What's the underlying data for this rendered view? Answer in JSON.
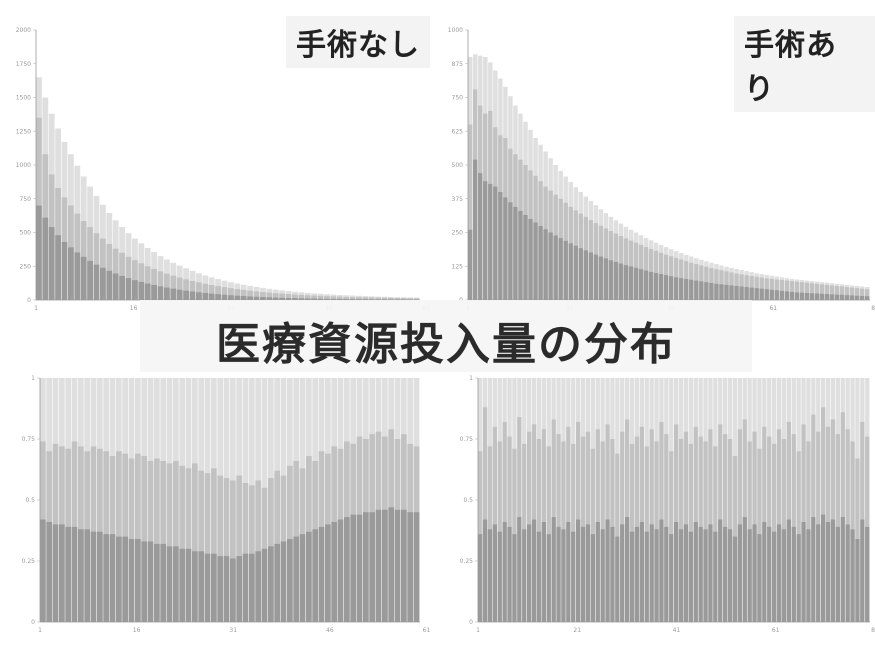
{
  "labels": {
    "without_surgery": "手術なし",
    "with_surgery": "手術あり",
    "banner": "医療資源投入量の分布"
  },
  "colors": {
    "bar_light": "#d9d9d9",
    "bar_mid": "#bdbdbd",
    "bar_dark": "#7a7a7a"
  },
  "chart_data": [
    {
      "type": "bar",
      "panel": "top-left",
      "x_range": [
        1,
        60
      ],
      "ylim": [
        0,
        2000
      ],
      "yticks": [
        0,
        250,
        500,
        750,
        1000,
        1250,
        1500,
        1750,
        2000
      ],
      "series": [
        {
          "values": [
            1650,
            1500,
            1380,
            1270,
            1170,
            1080,
            995,
            915,
            840,
            770,
            705,
            645,
            590,
            540,
            495,
            455,
            420,
            385,
            355,
            325,
            300,
            275,
            255,
            235,
            215,
            198,
            182,
            168,
            155,
            143,
            132,
            122,
            113,
            105,
            97,
            90,
            83,
            77,
            71,
            66,
            61,
            57,
            53,
            49,
            46,
            43,
            40,
            37,
            35,
            33,
            31,
            29,
            27,
            25,
            24,
            22,
            21,
            20,
            19,
            18
          ]
        },
        {
          "values": [
            1350,
            1080,
            930,
            830,
            760,
            700,
            640,
            585,
            540,
            495,
            455,
            415,
            380,
            350,
            320,
            295,
            272,
            250,
            230,
            212,
            195,
            180,
            166,
            153,
            141,
            130,
            120,
            111,
            103,
            95,
            88,
            81,
            75,
            69,
            64,
            59,
            55,
            51,
            47,
            44,
            41,
            38,
            35,
            33,
            31,
            29,
            27,
            25,
            23,
            22,
            21,
            20,
            19,
            18,
            17,
            16,
            15,
            14,
            13,
            12
          ]
        },
        {
          "values": [
            700,
            610,
            540,
            480,
            430,
            390,
            352,
            320,
            290,
            262,
            238,
            216,
            196,
            178,
            162,
            147,
            134,
            122,
            111,
            101,
            92,
            84,
            76,
            69,
            63,
            57,
            52,
            47,
            43,
            39,
            35,
            32,
            29,
            26,
            24,
            22,
            20,
            18,
            16,
            15,
            14,
            13,
            12,
            11,
            10,
            9,
            8,
            8,
            7,
            7,
            6,
            6,
            5,
            5,
            5,
            4,
            4,
            4,
            3,
            3
          ]
        }
      ]
    },
    {
      "type": "bar",
      "panel": "top-right",
      "x_range": [
        1,
        80
      ],
      "ylim": [
        0,
        1000
      ],
      "yticks": [
        0,
        125,
        250,
        375,
        500,
        625,
        750,
        875,
        1000
      ],
      "series": [
        {
          "values": [
            900,
            910,
            905,
            900,
            880,
            850,
            820,
            790,
            755,
            720,
            690,
            660,
            630,
            600,
            575,
            550,
            525,
            500,
            478,
            457,
            437,
            418,
            400,
            383,
            367,
            351,
            336,
            322,
            308,
            295,
            283,
            271,
            260,
            250,
            240,
            230,
            221,
            212,
            204,
            196,
            188,
            181,
            174,
            167,
            161,
            155,
            149,
            143,
            138,
            133,
            128,
            123,
            119,
            115,
            111,
            107,
            103,
            99,
            96,
            93,
            90,
            87,
            84,
            81,
            78,
            76,
            74,
            72,
            70,
            68,
            66,
            64,
            62,
            60,
            58,
            56,
            54,
            52,
            50,
            48
          ]
        },
        {
          "values": [
            650,
            780,
            720,
            690,
            700,
            640,
            610,
            600,
            560,
            540,
            520,
            500,
            480,
            460,
            440,
            420,
            405,
            390,
            375,
            360,
            345,
            332,
            320,
            308,
            296,
            285,
            275,
            265,
            255,
            246,
            237,
            228,
            220,
            212,
            204,
            196,
            189,
            182,
            175,
            168,
            162,
            156,
            150,
            144,
            138,
            133,
            128,
            123,
            118,
            114,
            110,
            106,
            102,
            98,
            95,
            92,
            89,
            86,
            83,
            80,
            78,
            76,
            74,
            72,
            70,
            68,
            66,
            64,
            62,
            60,
            58,
            56,
            54,
            52,
            50,
            48,
            46,
            44,
            42,
            40
          ]
        },
        {
          "values": [
            260,
            520,
            470,
            440,
            430,
            420,
            400,
            380,
            362,
            345,
            330,
            315,
            300,
            287,
            274,
            262,
            250,
            239,
            229,
            219,
            210,
            201,
            192,
            184,
            176,
            168,
            161,
            154,
            147,
            141,
            135,
            129,
            124,
            119,
            114,
            109,
            104,
            100,
            96,
            92,
            88,
            84,
            81,
            78,
            75,
            72,
            69,
            66,
            63,
            60,
            58,
            56,
            54,
            52,
            50,
            48,
            46,
            44,
            42,
            40,
            38,
            36,
            34,
            32,
            30,
            28,
            27,
            26,
            25,
            24,
            23,
            22,
            21,
            20,
            19,
            18,
            17,
            16,
            15,
            14
          ]
        }
      ]
    },
    {
      "type": "bar",
      "panel": "bottom-left",
      "x_range": [
        1,
        60
      ],
      "ylim": [
        0,
        1
      ],
      "yticks": [
        0,
        0.25,
        0.5,
        0.75,
        1
      ],
      "series": [
        {
          "values": [
            1,
            1,
            1,
            1,
            1,
            1,
            1,
            1,
            1,
            1,
            1,
            1,
            1,
            1,
            1,
            1,
            1,
            1,
            1,
            1,
            1,
            1,
            1,
            1,
            1,
            1,
            1,
            1,
            1,
            1,
            1,
            1,
            1,
            1,
            1,
            1,
            1,
            1,
            1,
            1,
            1,
            1,
            1,
            1,
            1,
            1,
            1,
            1,
            1,
            1,
            1,
            1,
            1,
            1,
            1,
            1,
            1,
            1,
            1,
            1
          ]
        },
        {
          "values": [
            0.74,
            0.7,
            0.73,
            0.72,
            0.71,
            0.74,
            0.72,
            0.7,
            0.72,
            0.71,
            0.7,
            0.68,
            0.7,
            0.69,
            0.67,
            0.69,
            0.68,
            0.66,
            0.67,
            0.66,
            0.65,
            0.66,
            0.64,
            0.63,
            0.65,
            0.62,
            0.61,
            0.63,
            0.6,
            0.59,
            0.58,
            0.6,
            0.57,
            0.56,
            0.58,
            0.55,
            0.59,
            0.62,
            0.6,
            0.64,
            0.66,
            0.63,
            0.68,
            0.66,
            0.7,
            0.69,
            0.72,
            0.71,
            0.74,
            0.73,
            0.76,
            0.75,
            0.77,
            0.78,
            0.76,
            0.79,
            0.75,
            0.77,
            0.73,
            0.72
          ]
        },
        {
          "values": [
            0.42,
            0.41,
            0.4,
            0.4,
            0.39,
            0.39,
            0.38,
            0.38,
            0.37,
            0.37,
            0.36,
            0.36,
            0.35,
            0.35,
            0.34,
            0.34,
            0.33,
            0.33,
            0.32,
            0.32,
            0.31,
            0.31,
            0.3,
            0.3,
            0.29,
            0.29,
            0.28,
            0.28,
            0.27,
            0.27,
            0.26,
            0.27,
            0.28,
            0.28,
            0.29,
            0.3,
            0.31,
            0.32,
            0.33,
            0.34,
            0.35,
            0.36,
            0.37,
            0.38,
            0.39,
            0.4,
            0.41,
            0.42,
            0.43,
            0.44,
            0.44,
            0.45,
            0.45,
            0.46,
            0.46,
            0.47,
            0.46,
            0.46,
            0.45,
            0.45
          ]
        }
      ]
    },
    {
      "type": "bar",
      "panel": "bottom-right",
      "x_range": [
        1,
        80
      ],
      "ylim": [
        0,
        1
      ],
      "yticks": [
        0,
        0.25,
        0.5,
        0.75,
        1
      ],
      "series": [
        {
          "values": [
            1,
            1,
            1,
            1,
            1,
            1,
            1,
            1,
            1,
            1,
            1,
            1,
            1,
            1,
            1,
            1,
            1,
            1,
            1,
            1,
            1,
            1,
            1,
            1,
            1,
            1,
            1,
            1,
            1,
            1,
            1,
            1,
            1,
            1,
            1,
            1,
            1,
            1,
            1,
            1,
            1,
            1,
            1,
            1,
            1,
            1,
            1,
            1,
            1,
            1,
            1,
            1,
            1,
            1,
            1,
            1,
            1,
            1,
            1,
            1,
            1,
            1,
            1,
            1,
            1,
            1,
            1,
            1,
            1,
            1,
            1,
            1,
            1,
            1,
            1,
            1,
            1,
            1,
            1,
            1
          ]
        },
        {
          "values": [
            0.7,
            0.88,
            0.72,
            0.8,
            0.74,
            0.82,
            0.76,
            0.71,
            0.84,
            0.73,
            0.78,
            0.81,
            0.75,
            0.79,
            0.72,
            0.83,
            0.77,
            0.74,
            0.8,
            0.73,
            0.82,
            0.76,
            0.78,
            0.71,
            0.79,
            0.74,
            0.81,
            0.75,
            0.69,
            0.78,
            0.83,
            0.73,
            0.76,
            0.8,
            0.72,
            0.79,
            0.74,
            0.82,
            0.77,
            0.7,
            0.81,
            0.75,
            0.78,
            0.73,
            0.8,
            0.76,
            0.74,
            0.79,
            0.72,
            0.81,
            0.77,
            0.75,
            0.68,
            0.79,
            0.83,
            0.74,
            0.78,
            0.71,
            0.8,
            0.76,
            0.73,
            0.79,
            0.75,
            0.82,
            0.77,
            0.7,
            0.81,
            0.74,
            0.85,
            0.78,
            0.88,
            0.8,
            0.83,
            0.77,
            0.86,
            0.79,
            0.74,
            0.67,
            0.82,
            0.76
          ]
        },
        {
          "values": [
            0.36,
            0.42,
            0.38,
            0.4,
            0.37,
            0.41,
            0.39,
            0.36,
            0.43,
            0.38,
            0.4,
            0.42,
            0.37,
            0.41,
            0.36,
            0.43,
            0.39,
            0.38,
            0.41,
            0.37,
            0.42,
            0.39,
            0.4,
            0.36,
            0.41,
            0.38,
            0.42,
            0.39,
            0.35,
            0.4,
            0.43,
            0.37,
            0.39,
            0.41,
            0.37,
            0.4,
            0.38,
            0.42,
            0.39,
            0.36,
            0.41,
            0.38,
            0.4,
            0.37,
            0.41,
            0.39,
            0.38,
            0.4,
            0.37,
            0.42,
            0.39,
            0.38,
            0.35,
            0.4,
            0.43,
            0.38,
            0.4,
            0.36,
            0.41,
            0.39,
            0.37,
            0.4,
            0.38,
            0.42,
            0.39,
            0.36,
            0.41,
            0.38,
            0.43,
            0.4,
            0.44,
            0.41,
            0.42,
            0.39,
            0.43,
            0.4,
            0.38,
            0.34,
            0.42,
            0.39
          ]
        }
      ]
    }
  ]
}
